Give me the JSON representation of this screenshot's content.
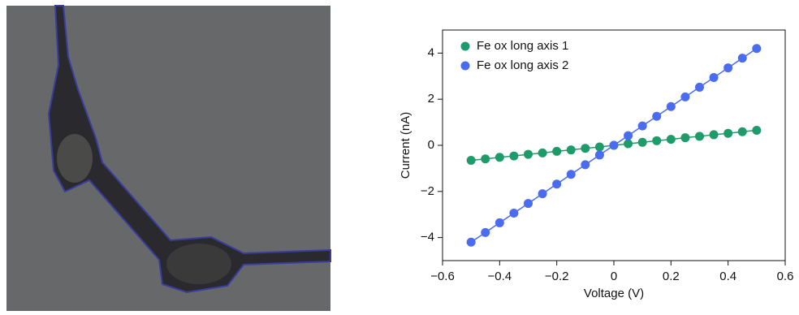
{
  "chart_data": {
    "type": "scatter",
    "x": [
      -0.5,
      -0.45,
      -0.4,
      -0.35,
      -0.3,
      -0.25,
      -0.2,
      -0.15,
      -0.1,
      -0.05,
      0,
      0.05,
      0.1,
      0.15,
      0.2,
      0.25,
      0.3,
      0.35,
      0.4,
      0.45,
      0.5
    ],
    "series": [
      {
        "name": "Fe ox long axis 1",
        "color": "#1f9a6a",
        "values": [
          -0.65,
          -0.59,
          -0.52,
          -0.46,
          -0.39,
          -0.33,
          -0.26,
          -0.2,
          -0.13,
          -0.07,
          0,
          0.07,
          0.13,
          0.2,
          0.26,
          0.33,
          0.39,
          0.46,
          0.52,
          0.59,
          0.65
        ]
      },
      {
        "name": "Fe ox long axis 2",
        "color": "#4a6cf0",
        "values": [
          -4.2,
          -3.78,
          -3.36,
          -2.94,
          -2.52,
          -2.1,
          -1.68,
          -1.26,
          -0.84,
          -0.42,
          0,
          0.42,
          0.84,
          1.26,
          1.68,
          2.1,
          2.52,
          2.94,
          3.36,
          3.78,
          4.2
        ]
      }
    ],
    "x_label": "Voltage (V)",
    "y_label": "Current (nA)",
    "xlim": [
      -0.6,
      0.6
    ],
    "xticks": [
      {
        "value": -0.6,
        "label": "−0.6"
      },
      {
        "value": -0.4,
        "label": "−0.4"
      },
      {
        "value": -0.2,
        "label": "−0.2"
      },
      0,
      0.2,
      0.4,
      0.6
    ],
    "ylim": [
      -5,
      5
    ],
    "yticks": [
      {
        "value": -4,
        "label": "−4"
      },
      {
        "value": -2,
        "label": "−2"
      },
      0,
      2,
      4
    ],
    "legend": "upper-left"
  }
}
